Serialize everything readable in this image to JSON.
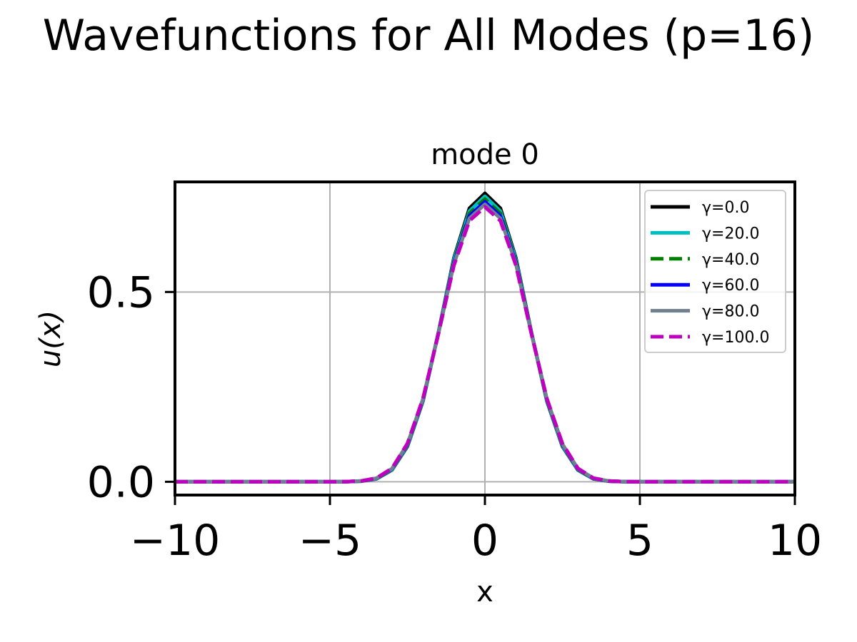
{
  "figure": {
    "suptitle": "Wavefunctions for All Modes (p=16)"
  },
  "chart_data": {
    "type": "line",
    "title": "mode 0",
    "xlabel": "x",
    "ylabel": "u(x)",
    "xlim": [
      -10,
      10
    ],
    "ylim": [
      -0.035,
      0.79
    ],
    "xticks": [
      -10,
      -5,
      0,
      5,
      10
    ],
    "xtick_labels": [
      "−10",
      "−5",
      "0",
      "5",
      "10"
    ],
    "yticks": [
      0.0,
      0.5
    ],
    "ytick_labels": [
      "0.0",
      "0.5"
    ],
    "grid": true,
    "legend_position": "upper-right",
    "x": [
      -10,
      -9,
      -8,
      -7,
      -6,
      -5,
      -4.5,
      -4,
      -3.5,
      -3,
      -2.5,
      -2,
      -1.5,
      -1,
      -0.5,
      0,
      0.5,
      1,
      1.5,
      2,
      2.5,
      3,
      3.5,
      4,
      4.5,
      5,
      6,
      7,
      8,
      9,
      10
    ],
    "series": [
      {
        "name": "γ=0.0",
        "color": "#000000",
        "dash": "solid",
        "values": [
          0,
          0,
          0,
          0,
          0,
          0,
          0.0003,
          0.0014,
          0.0076,
          0.0307,
          0.0931,
          0.2119,
          0.3935,
          0.5895,
          0.7204,
          0.76,
          0.7204,
          0.5895,
          0.3935,
          0.2119,
          0.0931,
          0.0307,
          0.0076,
          0.0014,
          0.0003,
          0,
          0,
          0,
          0,
          0,
          0
        ]
      },
      {
        "name": "γ=20.0",
        "color": "#00bfbf",
        "dash": "solid",
        "values": [
          0,
          0,
          0,
          0,
          0,
          0,
          0.0003,
          0.0016,
          0.0081,
          0.0316,
          0.0948,
          0.2135,
          0.3923,
          0.5851,
          0.7128,
          0.752,
          0.7128,
          0.5851,
          0.3923,
          0.2135,
          0.0948,
          0.0316,
          0.0081,
          0.0016,
          0.0003,
          0,
          0,
          0,
          0,
          0,
          0
        ]
      },
      {
        "name": "γ=40.0",
        "color": "#008000",
        "dash": "dashed",
        "values": [
          0,
          0,
          0,
          0,
          0,
          0,
          0.0003,
          0.0018,
          0.0085,
          0.0326,
          0.0965,
          0.2152,
          0.3919,
          0.5811,
          0.7067,
          0.745,
          0.7067,
          0.5811,
          0.3919,
          0.2152,
          0.0965,
          0.0326,
          0.0085,
          0.0018,
          0.0003,
          0,
          0,
          0,
          0,
          0,
          0
        ]
      },
      {
        "name": "γ=60.0",
        "color": "#0000ff",
        "dash": "solid",
        "values": [
          0,
          0,
          0,
          0,
          0,
          0,
          0.0004,
          0.0019,
          0.0089,
          0.0335,
          0.098,
          0.2166,
          0.3912,
          0.5773,
          0.7001,
          0.738,
          0.7001,
          0.5773,
          0.3912,
          0.2166,
          0.098,
          0.0335,
          0.0089,
          0.0019,
          0.0004,
          0,
          0,
          0,
          0,
          0,
          0
        ]
      },
      {
        "name": "γ=80.0",
        "color": "#708090",
        "dash": "solid",
        "values": [
          0,
          0,
          0,
          0,
          0,
          0,
          0.0004,
          0.002,
          0.0093,
          0.0344,
          0.0994,
          0.2179,
          0.3905,
          0.5737,
          0.6939,
          0.731,
          0.6939,
          0.5737,
          0.3905,
          0.2179,
          0.0994,
          0.0344,
          0.0093,
          0.002,
          0.0004,
          0,
          0,
          0,
          0,
          0,
          0
        ]
      },
      {
        "name": "γ=100.0",
        "color": "#bf00bf",
        "dash": "dashed",
        "values": [
          0,
          0,
          0,
          0,
          0,
          0,
          0.0004,
          0.0021,
          0.0097,
          0.0353,
          0.1009,
          0.2192,
          0.3898,
          0.5699,
          0.6876,
          0.724,
          0.6876,
          0.5699,
          0.3898,
          0.2192,
          0.1009,
          0.0353,
          0.0097,
          0.0021,
          0.0004,
          0,
          0,
          0,
          0,
          0,
          0
        ]
      }
    ]
  }
}
